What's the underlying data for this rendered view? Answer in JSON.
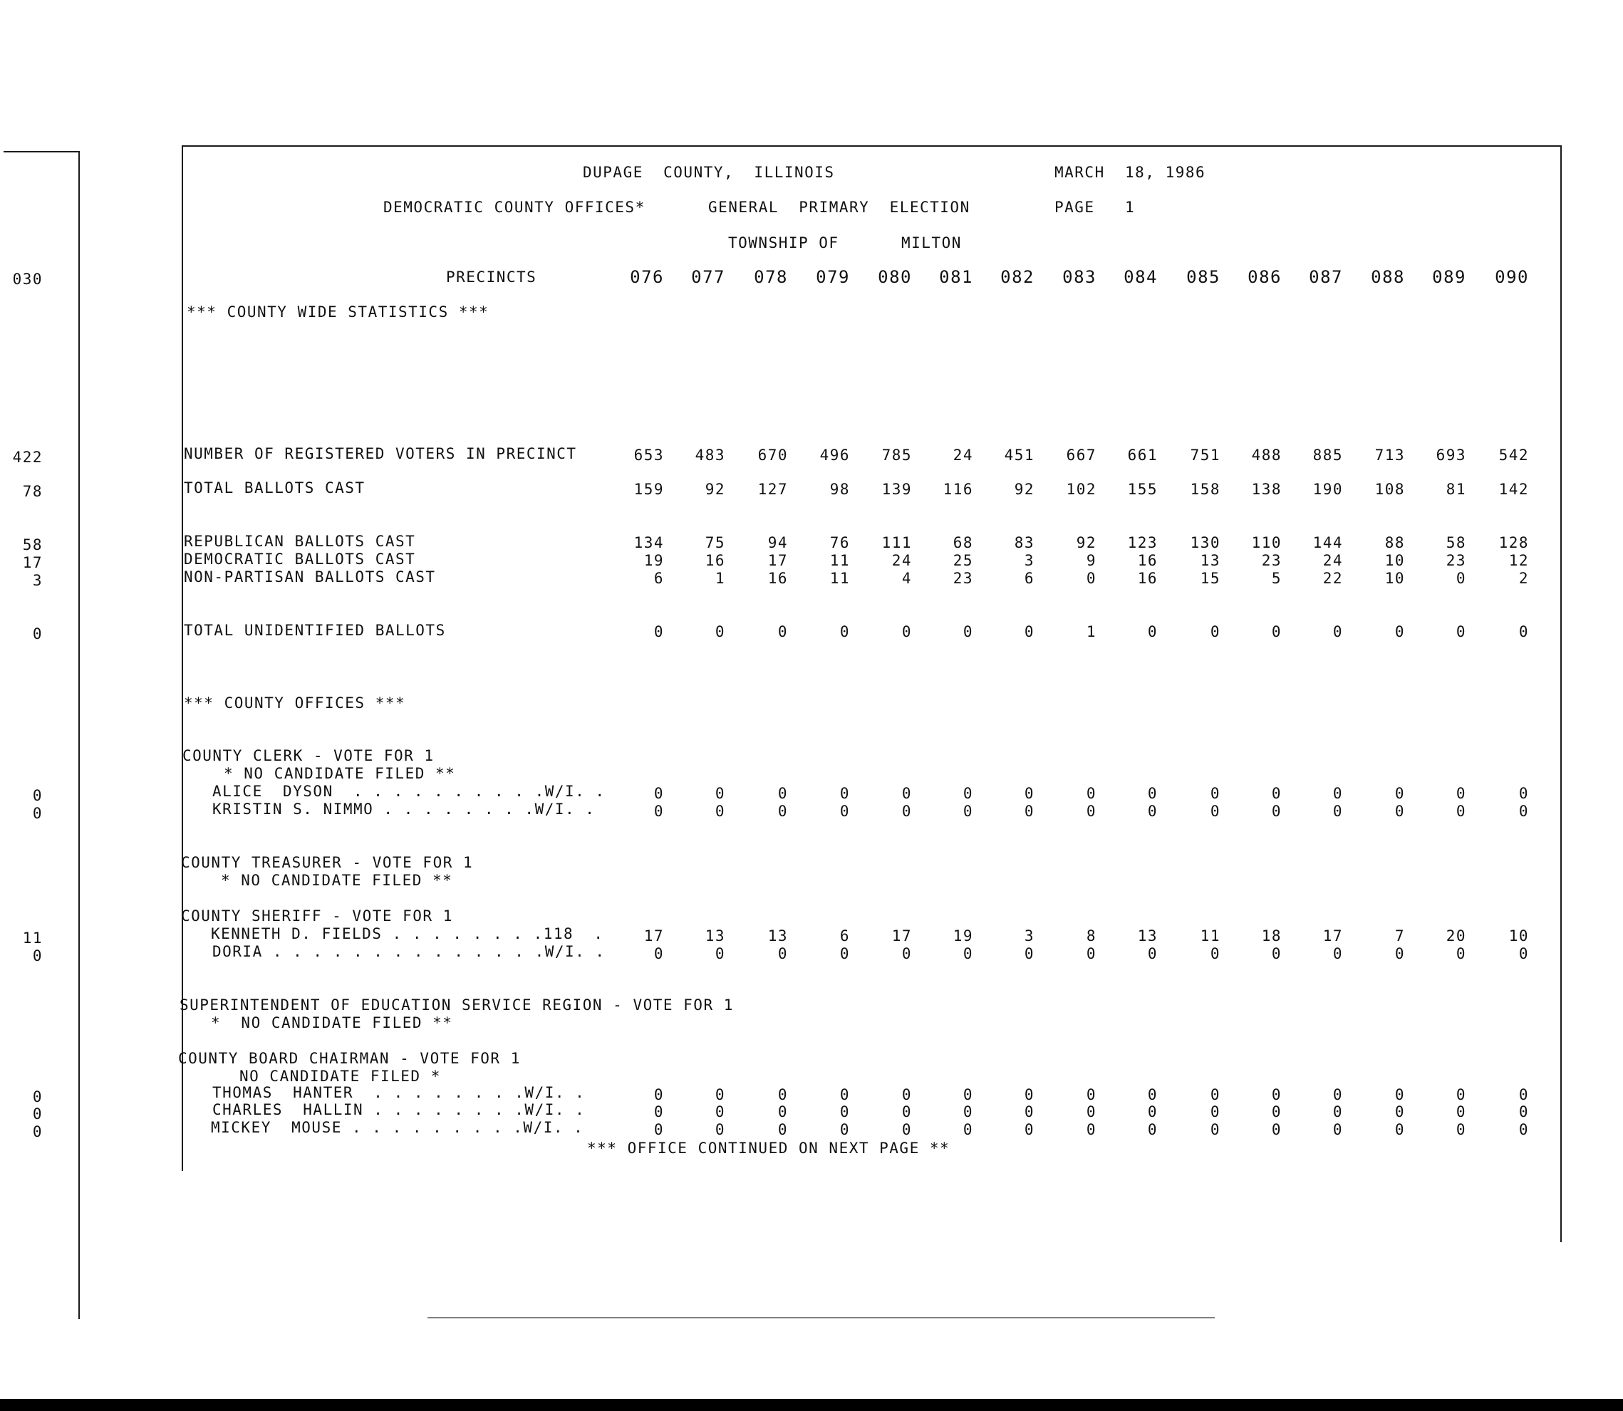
{
  "header": {
    "county": "DUPAGE  COUNTY,  ILLINOIS",
    "date": "MARCH  18, 1986",
    "office_type": "DEMOCRATIC COUNTY OFFICES*",
    "election": "GENERAL  PRIMARY  ELECTION",
    "page_label": "PAGE   1",
    "township_label": "TOWNSHIP OF",
    "township_name": "MILTON",
    "precincts_label": "PRECINCTS"
  },
  "precincts": [
    "076",
    "077",
    "078",
    "079",
    "080",
    "081",
    "082",
    "083",
    "084",
    "085",
    "086",
    "087",
    "088",
    "089",
    "090"
  ],
  "margin_numbers": {
    "precincts": "030",
    "registered": "422",
    "ballots": "78",
    "republican": "58",
    "democratic": "17",
    "nonpartisan": "3",
    "unidentified": "0",
    "dyson": "0",
    "nimmo": "0",
    "fields": "11",
    "doria": "0",
    "hanter": "0",
    "hallin": "0",
    "mouse": "0"
  },
  "sections": {
    "countywide": "*** COUNTY WIDE STATISTICS ***",
    "county_offices": "*** COUNTY OFFICES ***",
    "continued": "*** OFFICE CONTINUED ON NEXT PAGE **"
  },
  "stats": [
    {
      "key": "registered",
      "label": "NUMBER OF REGISTERED VOTERS IN PRECINCT",
      "values": [
        "653",
        "483",
        "670",
        "496",
        "785",
        "24",
        "451",
        "667",
        "661",
        "751",
        "488",
        "885",
        "713",
        "693",
        "542"
      ]
    },
    {
      "key": "ballots",
      "label": "TOTAL BALLOTS CAST",
      "values": [
        "159",
        "92",
        "127",
        "98",
        "139",
        "116",
        "92",
        "102",
        "155",
        "158",
        "138",
        "190",
        "108",
        "81",
        "142"
      ]
    },
    {
      "key": "republican",
      "label": "REPUBLICAN BALLOTS CAST",
      "values": [
        "134",
        "75",
        "94",
        "76",
        "111",
        "68",
        "83",
        "92",
        "123",
        "130",
        "110",
        "144",
        "88",
        "58",
        "128"
      ]
    },
    {
      "key": "democratic",
      "label": "DEMOCRATIC BALLOTS CAST",
      "values": [
        "19",
        "16",
        "17",
        "11",
        "24",
        "25",
        "3",
        "9",
        "16",
        "13",
        "23",
        "24",
        "10",
        "23",
        "12"
      ]
    },
    {
      "key": "nonpartisan",
      "label": "NON-PARTISAN BALLOTS CAST",
      "values": [
        "6",
        "1",
        "16",
        "11",
        "4",
        "23",
        "6",
        "0",
        "16",
        "15",
        "5",
        "22",
        "10",
        "0",
        "2"
      ]
    },
    {
      "key": "unidentified",
      "label": "TOTAL UNIDENTIFIED BALLOTS",
      "values": [
        "0",
        "0",
        "0",
        "0",
        "0",
        "0",
        "0",
        "1",
        "0",
        "0",
        "0",
        "0",
        "0",
        "0",
        "0"
      ]
    }
  ],
  "offices": {
    "clerk": {
      "title": "COUNTY CLERK - VOTE FOR 1",
      "note": "* NO CANDIDATE FILED **",
      "candidates": [
        {
          "key": "dyson",
          "label": "ALICE  DYSON  . . . . . . . . . .W/I. .",
          "values": [
            "0",
            "0",
            "0",
            "0",
            "0",
            "0",
            "0",
            "0",
            "0",
            "0",
            "0",
            "0",
            "0",
            "0",
            "0"
          ]
        },
        {
          "key": "nimmo",
          "label": "KRISTIN S. NIMMO . . . . . . . .W/I. .",
          "values": [
            "0",
            "0",
            "0",
            "0",
            "0",
            "0",
            "0",
            "0",
            "0",
            "0",
            "0",
            "0",
            "0",
            "0",
            "0"
          ]
        }
      ]
    },
    "treasurer": {
      "title": "COUNTY TREASURER - VOTE FOR 1",
      "note": "* NO CANDIDATE FILED **"
    },
    "sheriff": {
      "title": "COUNTY SHERIFF - VOTE FOR 1",
      "candidates": [
        {
          "key": "fields",
          "label": "KENNETH D. FIELDS . . . . . . . .118  .",
          "values": [
            "17",
            "13",
            "13",
            "6",
            "17",
            "19",
            "3",
            "8",
            "13",
            "11",
            "18",
            "17",
            "7",
            "20",
            "10"
          ]
        },
        {
          "key": "doria",
          "label": "DORIA . . . . . . . . . . . . . .W/I. .",
          "values": [
            "0",
            "0",
            "0",
            "0",
            "0",
            "0",
            "0",
            "0",
            "0",
            "0",
            "0",
            "0",
            "0",
            "0",
            "0"
          ]
        }
      ]
    },
    "superintendent": {
      "title": "SUPERINTENDENT OF EDUCATION SERVICE REGION - VOTE FOR 1",
      "note": "*  NO CANDIDATE FILED **"
    },
    "board": {
      "title": "COUNTY BOARD CHAIRMAN - VOTE FOR 1",
      "note": "NO CANDIDATE FILED *",
      "candidates": [
        {
          "key": "hanter",
          "label": "THOMAS  HANTER  . . . . . . . .W/I. .",
          "values": [
            "0",
            "0",
            "0",
            "0",
            "0",
            "0",
            "0",
            "0",
            "0",
            "0",
            "0",
            "0",
            "0",
            "0",
            "0"
          ]
        },
        {
          "key": "hallin",
          "label": "CHARLES  HALLIN . . . . . . . .W/I. .",
          "values": [
            "0",
            "0",
            "0",
            "0",
            "0",
            "0",
            "0",
            "0",
            "0",
            "0",
            "0",
            "0",
            "0",
            "0",
            "0"
          ]
        },
        {
          "key": "mouse",
          "label": "MICKEY  MOUSE . . . . . . . . .W/I. .",
          "values": [
            "0",
            "0",
            "0",
            "0",
            "0",
            "0",
            "0",
            "0",
            "0",
            "0",
            "0",
            "0",
            "0",
            "0",
            "0"
          ]
        }
      ]
    }
  }
}
